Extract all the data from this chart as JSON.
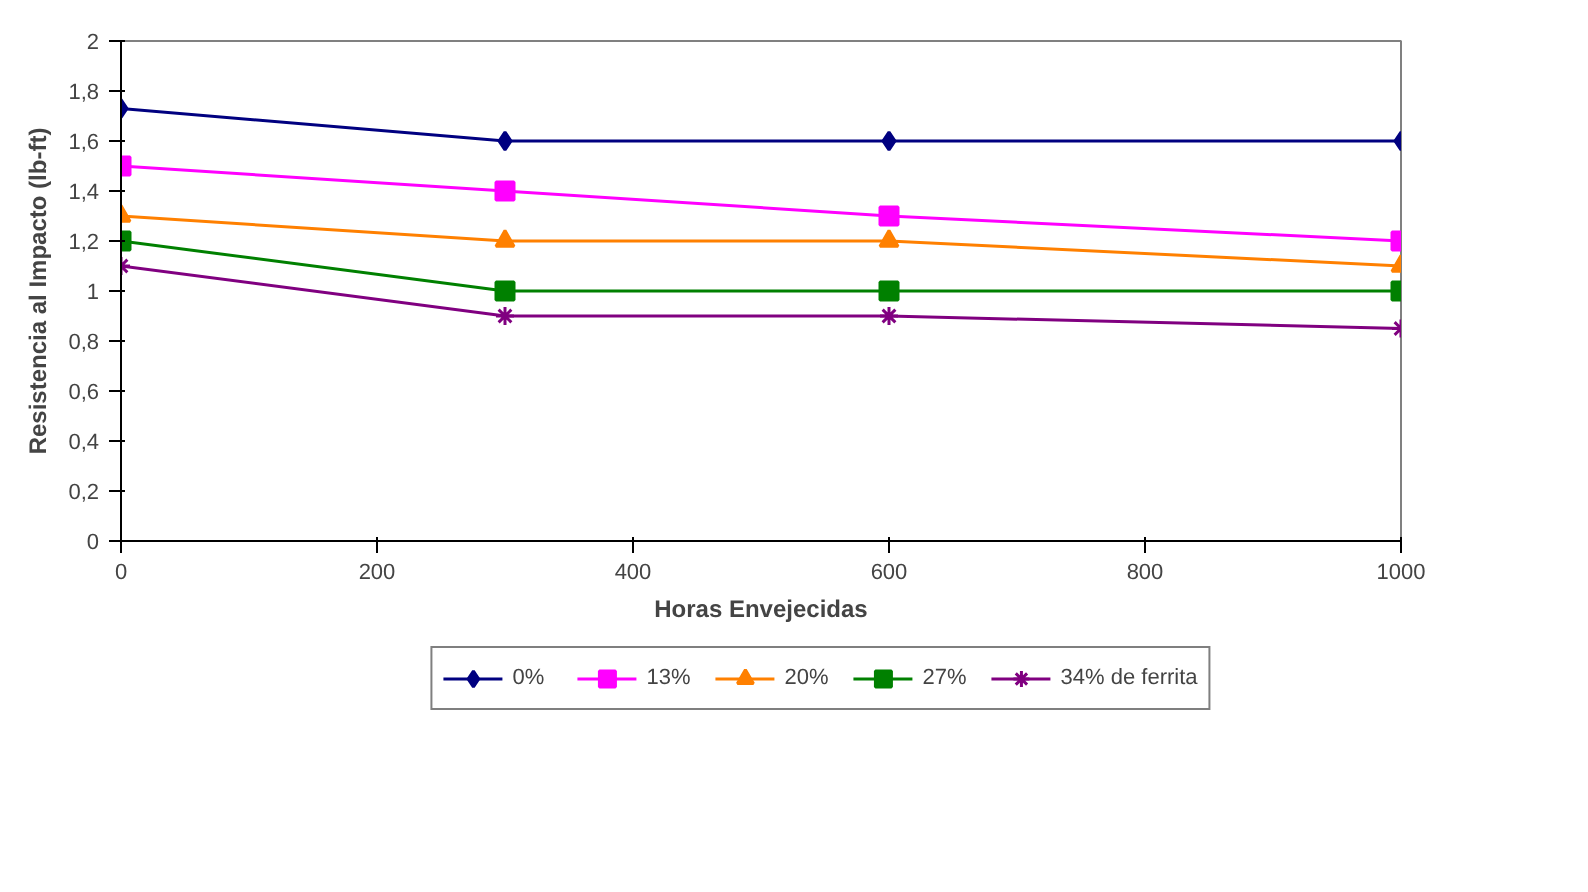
{
  "chart_data": {
    "type": "line",
    "xlabel": "Horas Envejecidas",
    "ylabel": "Resistencia al Impacto (lb-ft)",
    "x": [
      0,
      300,
      600,
      1000
    ],
    "xlim": [
      0,
      1000
    ],
    "xticks": [
      0,
      200,
      400,
      600,
      800,
      1000
    ],
    "ylim": [
      0,
      2
    ],
    "yticks": [
      0,
      {
        "value": 0.2,
        "label": "0,2"
      },
      {
        "value": 0.4,
        "label": "0,4"
      },
      {
        "value": 0.6,
        "label": "0,6"
      },
      {
        "value": 0.8,
        "label": "0,8"
      },
      1,
      {
        "value": 1.2,
        "label": "1,2"
      },
      {
        "value": 1.4,
        "label": "1,4"
      },
      {
        "value": 1.6,
        "label": "1,6"
      },
      {
        "value": 1.8,
        "label": "1,8"
      },
      2
    ],
    "grid": false,
    "legend": "bottom",
    "line_style": "solid",
    "series": [
      {
        "name": "0%",
        "color": "#000080",
        "marker": "diamond",
        "values": [
          1.73,
          1.6,
          1.6,
          1.6
        ]
      },
      {
        "name": "13%",
        "color": "#ff00ff",
        "marker": "square",
        "values": [
          1.5,
          1.4,
          1.3,
          1.2
        ]
      },
      {
        "name": "20%",
        "color": "#ff8000",
        "marker": "triangle",
        "values": [
          1.3,
          1.2,
          1.2,
          1.1
        ]
      },
      {
        "name": "27%",
        "color": "#008000",
        "marker": "square",
        "values": [
          1.2,
          1.0,
          1.0,
          1.0
        ]
      },
      {
        "name": "34% de ferrita",
        "color": "#800080",
        "marker": "cross",
        "values": [
          1.1,
          0.9,
          0.9,
          0.85
        ]
      }
    ]
  }
}
